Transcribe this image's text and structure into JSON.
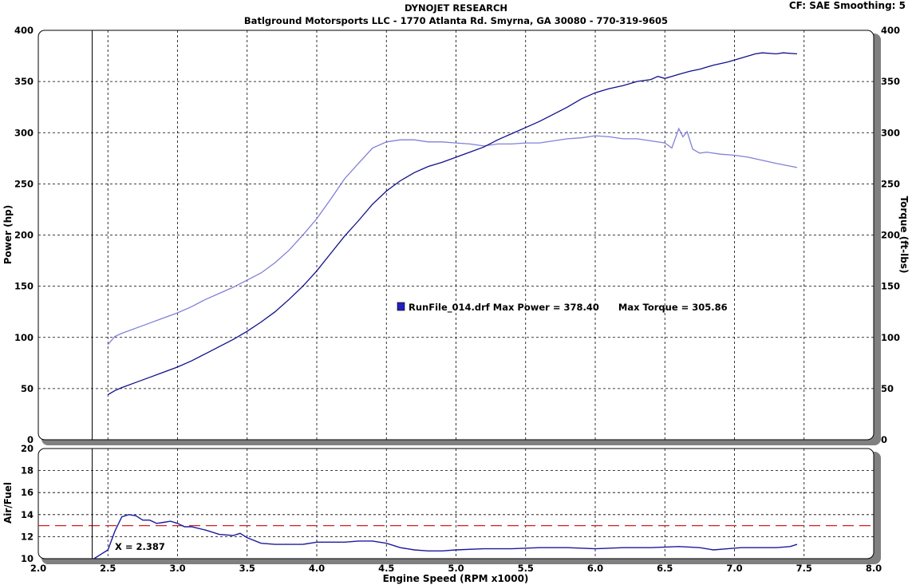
{
  "header": {
    "title": "DYNOJET RESEARCH",
    "subtitle": "Batlground Motorsports LLC - 1770 Atlanta Rd. Smyrna, GA 30080 - 770-319-9605",
    "settings": "CF: SAE  Smoothing: 5"
  },
  "legend": {
    "text": "RunFile_014.drf Max Power = 378.40      Max Torque = 305.86",
    "swatch_color": "#2020c0"
  },
  "cursor": {
    "x": 2.387,
    "label": "X = 2.387"
  },
  "colors": {
    "power": "#10108a",
    "torque": "#8080d8",
    "afr": "#1a1aa0",
    "target": "#d02020"
  },
  "chart_data": [
    {
      "type": "line",
      "xlabel": "Engine Speed (RPM x1000)",
      "ylabel": "Power (hp)",
      "y2label": "Torque (ft-lbs)",
      "xlim": [
        2.0,
        8.0
      ],
      "ylim": [
        0,
        400
      ],
      "y2lim": [
        0,
        400
      ],
      "xticks": [
        "2.0",
        "2.5",
        "3.0",
        "3.5",
        "4.0",
        "4.5",
        "5.0",
        "5.5",
        "6.0",
        "6.5",
        "7.0",
        "7.5",
        "8.0"
      ],
      "yticks": [
        "0",
        "50",
        "100",
        "150",
        "200",
        "250",
        "300",
        "350",
        "400"
      ],
      "grid": true,
      "series": [
        {
          "key": "power",
          "x": [
            2.5,
            2.55,
            2.6,
            2.7,
            2.8,
            2.9,
            3.0,
            3.1,
            3.2,
            3.3,
            3.4,
            3.5,
            3.6,
            3.7,
            3.8,
            3.9,
            4.0,
            4.1,
            4.2,
            4.3,
            4.4,
            4.5,
            4.6,
            4.7,
            4.8,
            4.9,
            5.0,
            5.1,
            5.2,
            5.3,
            5.4,
            5.5,
            5.6,
            5.7,
            5.8,
            5.9,
            6.0,
            6.1,
            6.2,
            6.3,
            6.4,
            6.45,
            6.5,
            6.55,
            6.6,
            6.68,
            6.75,
            6.85,
            6.95,
            7.05,
            7.15,
            7.2,
            7.3,
            7.35,
            7.45
          ],
          "y": [
            44,
            48,
            51,
            56,
            61,
            66,
            71,
            77,
            84,
            91,
            98,
            106,
            115,
            125,
            137,
            150,
            165,
            182,
            199,
            214,
            230,
            243,
            253,
            261,
            267,
            271,
            276,
            281,
            286,
            293,
            299,
            305,
            311,
            318,
            325,
            333,
            339,
            343,
            346,
            350,
            352,
            355,
            353,
            355,
            357,
            360,
            362,
            366,
            369,
            373,
            377,
            378,
            377,
            378,
            377
          ]
        },
        {
          "key": "torque",
          "x": [
            2.5,
            2.55,
            2.6,
            2.7,
            2.8,
            2.9,
            3.0,
            3.1,
            3.2,
            3.3,
            3.4,
            3.5,
            3.6,
            3.7,
            3.8,
            3.9,
            4.0,
            4.1,
            4.2,
            4.3,
            4.4,
            4.5,
            4.6,
            4.7,
            4.8,
            4.9,
            5.0,
            5.1,
            5.2,
            5.3,
            5.4,
            5.5,
            5.6,
            5.7,
            5.8,
            5.9,
            6.0,
            6.1,
            6.2,
            6.3,
            6.4,
            6.5,
            6.55,
            6.6,
            6.63,
            6.66,
            6.7,
            6.75,
            6.8,
            6.9,
            7.0,
            7.1,
            7.2,
            7.3,
            7.45
          ],
          "y": [
            93,
            101,
            104,
            109,
            114,
            119,
            124,
            130,
            137,
            143,
            149,
            156,
            163,
            173,
            185,
            200,
            216,
            235,
            255,
            270,
            285,
            291,
            293,
            293,
            291,
            291,
            290,
            289,
            287,
            289,
            289,
            290,
            290,
            292,
            294,
            295,
            297,
            296,
            294,
            294,
            292,
            290,
            285,
            304,
            296,
            301,
            284,
            280,
            281,
            279,
            278,
            276,
            273,
            270,
            266
          ]
        }
      ]
    },
    {
      "type": "line",
      "ylabel": "Air/Fuel",
      "xlim": [
        2.0,
        8.0
      ],
      "ylim": [
        10,
        20
      ],
      "yticks": [
        "10",
        "12",
        "14",
        "16",
        "18",
        "20"
      ],
      "grid": true,
      "target": 13.0,
      "series": [
        {
          "key": "afr",
          "x": [
            2.4,
            2.5,
            2.55,
            2.6,
            2.65,
            2.7,
            2.75,
            2.8,
            2.85,
            2.9,
            2.95,
            3.0,
            3.05,
            3.1,
            3.2,
            3.3,
            3.4,
            3.45,
            3.5,
            3.6,
            3.7,
            3.8,
            3.9,
            4.0,
            4.1,
            4.2,
            4.3,
            4.4,
            4.5,
            4.6,
            4.7,
            4.8,
            4.9,
            5.0,
            5.2,
            5.4,
            5.6,
            5.8,
            6.0,
            6.2,
            6.4,
            6.6,
            6.75,
            6.85,
            6.95,
            7.05,
            7.2,
            7.3,
            7.4,
            7.45
          ],
          "y": [
            10.0,
            10.8,
            12.5,
            13.8,
            14.0,
            13.9,
            13.5,
            13.5,
            13.2,
            13.3,
            13.4,
            13.2,
            12.9,
            12.9,
            12.6,
            12.2,
            12.1,
            12.3,
            11.9,
            11.4,
            11.3,
            11.3,
            11.3,
            11.5,
            11.5,
            11.5,
            11.6,
            11.6,
            11.4,
            11.0,
            10.8,
            10.7,
            10.7,
            10.8,
            10.9,
            10.9,
            11.0,
            11.0,
            10.9,
            11.0,
            11.0,
            11.1,
            11.0,
            10.8,
            10.9,
            11.0,
            11.0,
            11.0,
            11.1,
            11.3
          ]
        }
      ]
    }
  ]
}
